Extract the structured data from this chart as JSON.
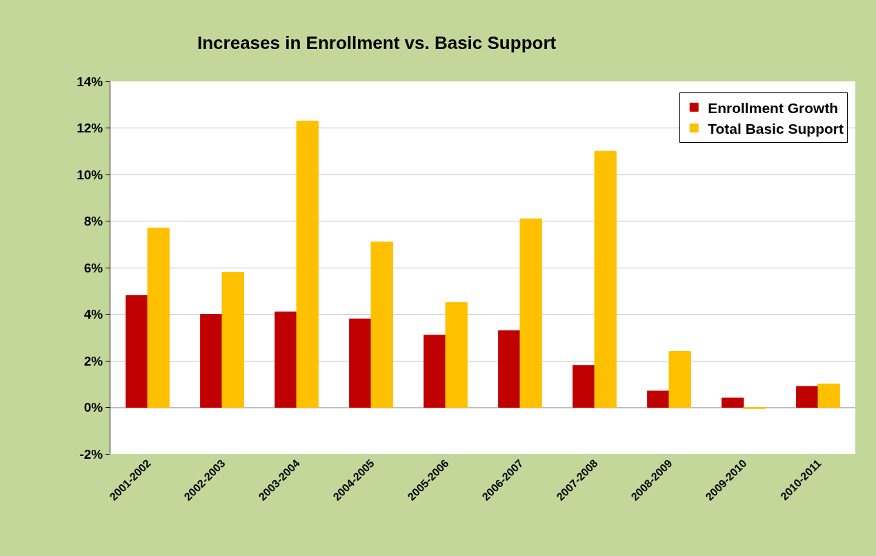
{
  "chart_data": {
    "type": "bar",
    "title": "Increases in Enrollment vs. Basic Support",
    "categories": [
      "2001-2002",
      "2002-2003",
      "2003-2004",
      "2004-2005",
      "2005-2006",
      "2006-2007",
      "2007-2008",
      "2008-2009",
      "2009-2010",
      "2010-2011"
    ],
    "series": [
      {
        "name": "Enrollment Growth",
        "color": "#c00000",
        "values": [
          4.8,
          4.0,
          4.1,
          3.8,
          3.1,
          3.3,
          1.8,
          0.7,
          0.4,
          0.9
        ]
      },
      {
        "name": "Total Basic Support",
        "color": "#ffc000",
        "values": [
          7.7,
          5.8,
          12.3,
          7.1,
          4.5,
          8.1,
          11.0,
          2.4,
          -0.05,
          1.0
        ]
      }
    ],
    "ylim": [
      -2,
      14
    ],
    "yticks": [
      {
        "value": -2,
        "label": "-2%"
      },
      {
        "value": 0,
        "label": "0%"
      },
      {
        "value": 2,
        "label": "2%"
      },
      {
        "value": 4,
        "label": "4%"
      },
      {
        "value": 6,
        "label": "6%"
      },
      {
        "value": 8,
        "label": "8%"
      },
      {
        "value": 10,
        "label": "10%"
      },
      {
        "value": 12,
        "label": "12%"
      },
      {
        "value": 14,
        "label": "14%"
      }
    ],
    "grid": "y",
    "legend": "top right"
  }
}
